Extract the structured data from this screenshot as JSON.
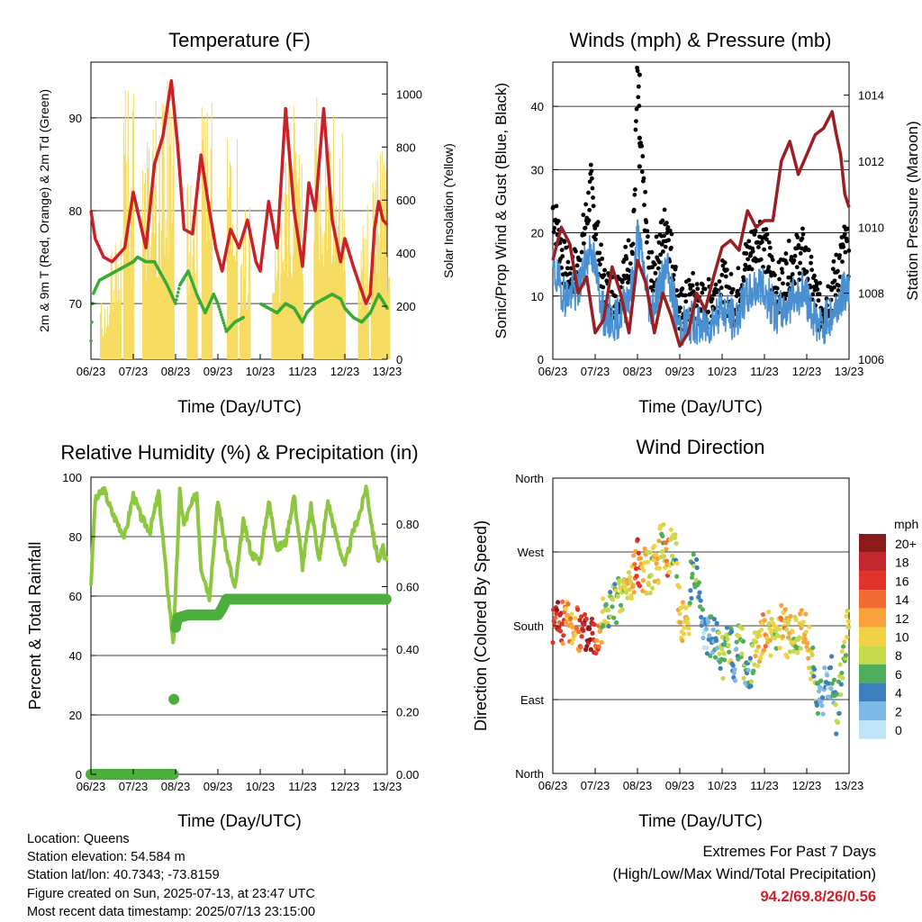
{
  "x_ticks": [
    "06/23",
    "07/23",
    "08/23",
    "09/23",
    "10/23",
    "11/23",
    "12/23",
    "13/23"
  ],
  "info": {
    "location": "Location: Queens",
    "elevation": "Station elevation: 54.584 m",
    "latlon": "Station lat/lon: 40.7343; -73.8159",
    "created": "Figure created on Sun, 2025-07-13, at 23:47 UTC",
    "recent": "Most recent data timestamp: 2025/07/13 23:15:00"
  },
  "extremes": {
    "title": "Extremes For Past 7 Days",
    "subtitle": "(High/Low/Max Wind/Total Precipitation)",
    "values": "94.2/69.8/26/0.56"
  },
  "chart_data": [
    {
      "type": "line",
      "title": "Temperature (F)",
      "xlabel": "Time (Day/UTC)",
      "ylabel": "2m & 9m T (Red, Orange) & 2m Td (Green)",
      "y2label": "Solar Insolation (Yellow)",
      "ylim": [
        64,
        96
      ],
      "y2lim": [
        0,
        1120
      ],
      "yticks": [
        70,
        80,
        90
      ],
      "y2ticks": [
        0,
        200,
        400,
        600,
        800,
        1000
      ],
      "colors": {
        "temperature": "#cc2027",
        "dewpoint": "#3aaa35",
        "solar": "#f6dc63"
      },
      "series": [
        {
          "name": "Temperature",
          "x": [
            6.0,
            6.1,
            6.3,
            6.5,
            6.8,
            7.0,
            7.2,
            7.3,
            7.5,
            7.7,
            7.9,
            8.05,
            8.2,
            8.4,
            8.6,
            8.8,
            8.95,
            9.1,
            9.3,
            9.5,
            9.7,
            9.9,
            10.0,
            10.2,
            10.4,
            10.6,
            10.8,
            11.0,
            11.15,
            11.3,
            11.5,
            11.7,
            11.9,
            12.0,
            12.2,
            12.35,
            12.5,
            12.6,
            12.7,
            12.8,
            12.9,
            13.0
          ],
          "values": [
            80,
            77,
            75,
            74.5,
            76,
            82,
            78,
            76,
            85,
            88,
            94,
            87,
            78,
            77.5,
            86,
            80,
            76,
            73.5,
            78,
            76,
            79,
            74.5,
            73.5,
            81,
            76,
            91,
            80,
            74,
            83,
            80,
            91,
            79,
            74.5,
            77,
            74,
            72,
            70,
            71,
            78,
            81,
            79,
            78.5
          ]
        },
        {
          "name": "Dewpoint",
          "x": [
            6.0,
            6.05,
            6.2,
            6.4,
            6.6,
            6.8,
            7.0,
            7.1,
            7.3,
            7.5,
            7.8,
            8.0,
            8.1,
            8.3,
            8.5,
            8.7,
            8.9,
            9.0,
            9.2,
            9.4,
            9.6,
            9.8,
            10.0,
            10.2,
            10.4,
            10.6,
            10.8,
            11.0,
            11.1,
            11.3,
            11.5,
            11.7,
            11.9,
            12.0,
            12.2,
            12.4,
            12.6,
            12.8,
            13.0
          ],
          "values": [
            66,
            71,
            72.5,
            73,
            73.5,
            74,
            74.5,
            75,
            74.5,
            74.5,
            72,
            70,
            72,
            73.5,
            71,
            69,
            71,
            70,
            67,
            68,
            68.5,
            null,
            70,
            69.5,
            69,
            70,
            69.5,
            68,
            69,
            70,
            70.5,
            71,
            70.5,
            69.5,
            68.5,
            68,
            69,
            71,
            69.5
          ]
        },
        {
          "name": "Solar Insolation",
          "axis": "y2",
          "peaks": [
            [
              6.35,
              230
            ],
            [
              6.6,
              500
            ],
            [
              6.9,
              1100
            ],
            [
              7.35,
              850
            ],
            [
              7.6,
              1000
            ],
            [
              7.85,
              1080
            ],
            [
              8.4,
              700
            ],
            [
              8.75,
              1000
            ],
            [
              9.35,
              850
            ],
            [
              9.65,
              580
            ],
            [
              10.4,
              520
            ],
            [
              10.65,
              1000
            ],
            [
              10.9,
              1000
            ],
            [
              11.4,
              1060
            ],
            [
              11.65,
              1080
            ],
            [
              11.9,
              950
            ],
            [
              12.45,
              600
            ],
            [
              12.75,
              760
            ],
            [
              12.95,
              800
            ]
          ]
        }
      ]
    },
    {
      "type": "scatter",
      "title": "Winds (mph) & Pressure (mb)",
      "xlabel": "Time (Day/UTC)",
      "ylabel": "Sonic/Prop Wind & Gust (Blue, Black)",
      "y2label": "Station Pressure (Maroon)",
      "ylim": [
        0,
        47
      ],
      "y2lim": [
        1006,
        1015
      ],
      "yticks": [
        0,
        10,
        20,
        30,
        40
      ],
      "y2ticks": [
        1006,
        1008,
        1010,
        1012,
        1014
      ],
      "colors": {
        "wind": "#4a90d0",
        "gust": "#000000",
        "pressure": "#9a1f22"
      },
      "series": [
        {
          "name": "Wind",
          "x": [
            6.0,
            6.3,
            6.6,
            6.9,
            7.2,
            7.5,
            7.9,
            8.0,
            8.3,
            8.7,
            9.0,
            9.3,
            9.6,
            10.0,
            10.3,
            10.6,
            10.9,
            11.3,
            11.6,
            11.9,
            12.3,
            12.6,
            12.9,
            13.0
          ],
          "values": [
            14,
            10,
            11,
            18,
            7,
            6,
            12,
            20,
            8,
            14,
            5,
            6,
            5,
            8,
            6,
            10,
            12,
            7,
            9,
            11,
            5,
            7,
            11,
            12
          ]
        },
        {
          "name": "Gust",
          "x": [
            6.0,
            6.3,
            6.6,
            6.9,
            7.2,
            7.5,
            7.9,
            8.0,
            8.05,
            8.3,
            8.7,
            9.0,
            9.3,
            9.6,
            10.0,
            10.3,
            10.6,
            10.9,
            11.3,
            11.6,
            11.9,
            12.3,
            12.6,
            12.9,
            13.0
          ],
          "values": [
            24,
            14,
            14,
            27,
            11,
            10,
            18,
            45,
            35,
            12,
            22,
            7,
            10,
            8,
            12,
            9,
            16,
            20,
            11,
            15,
            17,
            8,
            11,
            18,
            16
          ]
        },
        {
          "name": "Pressure",
          "axis": "y2",
          "x": [
            6.0,
            6.2,
            6.4,
            6.6,
            6.8,
            7.0,
            7.2,
            7.4,
            7.6,
            7.8,
            8.0,
            8.2,
            8.4,
            8.6,
            8.8,
            9.0,
            9.2,
            9.4,
            9.6,
            9.8,
            10.0,
            10.2,
            10.4,
            10.6,
            10.8,
            11.0,
            11.2,
            11.4,
            11.6,
            11.8,
            12.0,
            12.2,
            12.4,
            12.6,
            12.7,
            12.8,
            12.9,
            13.0
          ],
          "values": [
            1009,
            1010,
            1009.5,
            1008,
            1008.5,
            1006.8,
            1007.2,
            1008.8,
            1008,
            1006.8,
            1009,
            1008.3,
            1006.8,
            1008,
            1007.3,
            1006.4,
            1006.8,
            1008,
            1007.5,
            1008.5,
            1009.4,
            1009.6,
            1009.3,
            1010.5,
            1010,
            1010.2,
            1010.2,
            1012,
            1012.6,
            1011.6,
            1012.2,
            1012.8,
            1013,
            1013.5,
            1012.8,
            1012.2,
            1011,
            1010.6
          ]
        }
      ]
    },
    {
      "type": "line",
      "title": "Relative Humidity (%) & Precipitation (in)",
      "xlabel": "Time (Day/UTC)",
      "ylabel": "Percent & Total Rainfall",
      "ylim": [
        0,
        100
      ],
      "y2lim": [
        0,
        0.95
      ],
      "yticks": [
        0,
        20,
        40,
        60,
        80,
        100
      ],
      "y2ticks": [
        "0.00",
        "0.20",
        "0.40",
        "0.60",
        "0.80"
      ],
      "colors": {
        "rh": "#8dc63f",
        "precip": "#4caf3c"
      },
      "series": [
        {
          "name": "Relative Humidity",
          "x": [
            6.0,
            6.1,
            6.3,
            6.5,
            6.8,
            7.0,
            7.2,
            7.4,
            7.6,
            7.8,
            7.95,
            8.1,
            8.2,
            8.3,
            8.5,
            8.6,
            8.8,
            9.0,
            9.2,
            9.4,
            9.6,
            9.8,
            10.0,
            10.2,
            10.4,
            10.6,
            10.8,
            11.0,
            11.2,
            11.4,
            11.6,
            11.8,
            12.0,
            12.2,
            12.4,
            12.5,
            12.7,
            12.8,
            12.9,
            13.0
          ],
          "values": [
            64,
            92,
            96,
            88,
            80,
            94,
            86,
            82,
            95,
            64,
            44,
            95,
            84,
            88,
            95,
            70,
            60,
            92,
            75,
            62,
            85,
            74,
            72,
            92,
            76,
            78,
            94,
            70,
            90,
            72,
            92,
            80,
            70,
            82,
            90,
            97,
            78,
            72,
            76,
            71
          ]
        },
        {
          "name": "Precipitation",
          "axis": "y2",
          "x": [
            6.0,
            7.95,
            7.96,
            8.0,
            8.05,
            8.3,
            8.4,
            8.6,
            8.9,
            9.0,
            9.1,
            9.2,
            9.3,
            9.5,
            10.0,
            11.0,
            12.0,
            13.0
          ],
          "values": [
            0.0,
            0.0,
            0.24,
            0.47,
            0.5,
            0.51,
            0.51,
            0.51,
            0.51,
            0.51,
            0.53,
            0.56,
            0.56,
            0.56,
            0.56,
            0.56,
            0.56,
            0.56
          ]
        }
      ]
    },
    {
      "type": "scatter",
      "title": "Wind Direction",
      "xlabel": "Time (Day/UTC)",
      "ylabel": "Direction (Colored By Speed)",
      "ylim": [
        0,
        360
      ],
      "yticks": [
        "North",
        "East",
        "South",
        "West",
        "North"
      ],
      "legend": {
        "title": "mph",
        "labels": [
          "20+",
          "18",
          "16",
          "14",
          "12",
          "10",
          "8",
          "6",
          "4",
          "2",
          "0"
        ],
        "colors": [
          "#8b1a1a",
          "#c1272d",
          "#e2332a",
          "#f26b35",
          "#f9a23c",
          "#f0d247",
          "#c5d94a",
          "#4fae5c",
          "#3b7fbe",
          "#7eb8e6",
          "#bfe3f7"
        ]
      },
      "series": [
        {
          "name": "Direction",
          "x": [
            6.0,
            6.1,
            6.2,
            6.3,
            6.5,
            6.7,
            6.9,
            7.0,
            7.2,
            7.4,
            7.6,
            7.8,
            7.9,
            8.0,
            8.1,
            8.3,
            8.5,
            8.6,
            8.7,
            8.8,
            8.9,
            9.0,
            9.2,
            9.3,
            9.4,
            9.5,
            9.6,
            9.8,
            10.0,
            10.2,
            10.3,
            10.4,
            10.6,
            10.8,
            11.0,
            11.1,
            11.3,
            11.4,
            11.6,
            11.8,
            12.0,
            12.1,
            12.3,
            12.5,
            12.6,
            12.7,
            12.9,
            13.0
          ],
          "values": [
            180,
            185,
            182,
            190,
            178,
            170,
            175,
            168,
            190,
            205,
            215,
            230,
            240,
            260,
            250,
            245,
            260,
            300,
            250,
            275,
            280,
            190,
            180,
            260,
            240,
            200,
            170,
            165,
            140,
            160,
            120,
            175,
            110,
            150,
            175,
            170,
            160,
            180,
            165,
            175,
            170,
            140,
            90,
            110,
            120,
            70,
            160,
            185
          ],
          "speeds": [
            14,
            18,
            16,
            12,
            10,
            18,
            20,
            16,
            8,
            6,
            8,
            10,
            12,
            16,
            12,
            8,
            12,
            6,
            14,
            10,
            6,
            12,
            10,
            4,
            6,
            4,
            2,
            4,
            6,
            8,
            2,
            8,
            4,
            10,
            12,
            10,
            8,
            12,
            10,
            8,
            12,
            8,
            4,
            2,
            4,
            6,
            8,
            10
          ]
        }
      ]
    }
  ]
}
